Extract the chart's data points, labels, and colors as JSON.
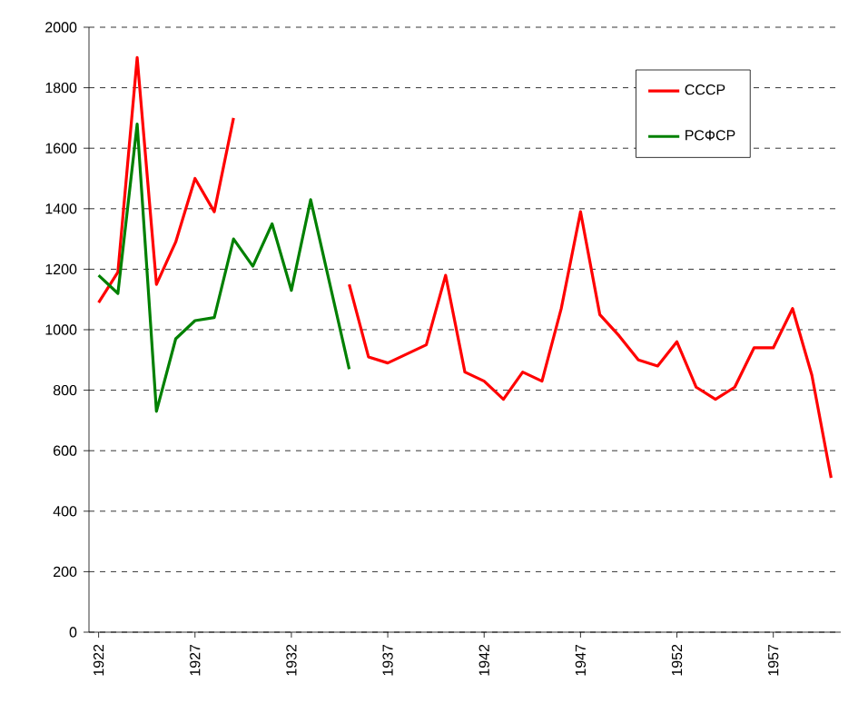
{
  "chart_data": {
    "type": "line",
    "x": [
      1922,
      1923,
      1924,
      1925,
      1926,
      1927,
      1928,
      1929,
      1930,
      1931,
      1932,
      1933,
      1934,
      1935,
      1936,
      1937,
      1938,
      1939,
      1940,
      1941,
      1942,
      1943,
      1944,
      1945,
      1946,
      1947,
      1948,
      1949,
      1950,
      1951,
      1952,
      1953,
      1954,
      1955,
      1956,
      1957,
      1958,
      1959,
      1960
    ],
    "series": [
      {
        "name": "СССР",
        "color": "#ff0000",
        "values": [
          1090,
          1190,
          1900,
          1150,
          1290,
          1500,
          1390,
          1700,
          null,
          null,
          null,
          null,
          null,
          1150,
          910,
          890,
          920,
          950,
          1180,
          860,
          830,
          770,
          860,
          830,
          1070,
          1390,
          1050,
          980,
          900,
          880,
          960,
          810,
          770,
          810,
          940,
          940,
          1070,
          850,
          510
        ]
      },
      {
        "name": "РСФСР",
        "color": "#008000",
        "values": [
          1180,
          1120,
          1680,
          730,
          970,
          1030,
          1040,
          1300,
          1210,
          1350,
          1130,
          1430,
          1150,
          870,
          null,
          null,
          null,
          null,
          null,
          null,
          null,
          null,
          null,
          null,
          null,
          null,
          null,
          null,
          null,
          null,
          null,
          null,
          null,
          null,
          null,
          null,
          null,
          null,
          null
        ]
      }
    ],
    "xlim": [
      1921.5,
      1960.5
    ],
    "xticks": [
      1922,
      1927,
      1932,
      1937,
      1942,
      1947,
      1952,
      1957
    ],
    "ylim": [
      0,
      2000
    ],
    "yticks": [
      0,
      200,
      400,
      600,
      800,
      1000,
      1200,
      1400,
      1600,
      1800,
      2000
    ],
    "grid": "y",
    "legend": "top right",
    "marker": "none",
    "line_style": "solid"
  }
}
